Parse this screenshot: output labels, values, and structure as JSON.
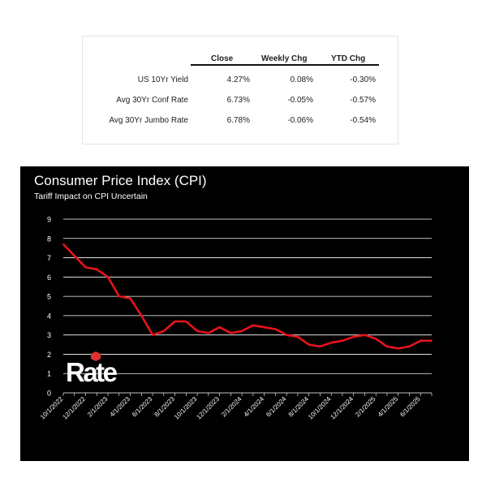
{
  "rates_table": {
    "columns": [
      "Close",
      "Weekly Chg",
      "YTD Chg"
    ],
    "rows": [
      {
        "label": "US 10Yr Yield",
        "close": "4.27%",
        "weekly": "0.08%",
        "ytd": "-0.30%"
      },
      {
        "label": "Avg 30Yr Conf Rate",
        "close": "6.73%",
        "weekly": "-0.05%",
        "ytd": "-0.57%"
      },
      {
        "label": "Avg 30Yr Jumbo Rate",
        "close": "6.78%",
        "weekly": "-0.06%",
        "ytd": "-0.54%"
      }
    ]
  },
  "logo": {
    "text": "Rate",
    "accent": "#e0312f"
  },
  "colors": {
    "background": "#000000",
    "line": "#e8131b",
    "grid": "#ffffff",
    "text": "#ffffff"
  },
  "chart_data": {
    "type": "line",
    "title": "Consumer Price Index (CPI)",
    "subtitle": "Tariff Impact on CPI Uncertain",
    "xlabel": "",
    "ylabel": "",
    "ylim": [
      0,
      9
    ],
    "yticks": [
      "0",
      "1",
      "2",
      "3",
      "4",
      "5",
      "6",
      "7",
      "8",
      "9"
    ],
    "grid": true,
    "legend": "none",
    "x": [
      "10/1/2022",
      "11/1/2022",
      "12/1/2022",
      "1/1/2023",
      "2/1/2023",
      "3/1/2023",
      "4/1/2023",
      "5/1/2023",
      "6/1/2023",
      "7/1/2023",
      "8/1/2023",
      "9/1/2023",
      "10/1/2023",
      "11/1/2023",
      "12/1/2023",
      "1/1/2024",
      "2/1/2024",
      "3/1/2024",
      "4/1/2024",
      "5/1/2024",
      "6/1/2024",
      "7/1/2024",
      "8/1/2024",
      "9/1/2024",
      "10/1/2024",
      "11/1/2024",
      "12/1/2024",
      "1/1/2025",
      "2/1/2025",
      "3/1/2025",
      "4/1/2025",
      "5/1/2025",
      "6/1/2025",
      "7/1/2025"
    ],
    "xtick_labels": [
      "10/1/2022",
      "12/1/2022",
      "2/1/2023",
      "4/1/2023",
      "6/1/2023",
      "8/1/2023",
      "10/1/2023",
      "12/1/2023",
      "2/1/2024",
      "4/1/2024",
      "6/1/2024",
      "8/1/2024",
      "10/1/2024",
      "12/1/2024",
      "2/1/2025",
      "4/1/2025",
      "6/1/2025"
    ],
    "series": [
      {
        "values": [
          7.7,
          7.1,
          6.5,
          6.4,
          6.0,
          5.0,
          4.9,
          4.0,
          3.0,
          3.2,
          3.7,
          3.7,
          3.2,
          3.1,
          3.4,
          3.1,
          3.2,
          3.5,
          3.4,
          3.3,
          3.0,
          2.9,
          2.5,
          2.4,
          2.6,
          2.7,
          2.9,
          3.0,
          2.8,
          2.4,
          2.3,
          2.4,
          2.7,
          2.7
        ]
      }
    ]
  }
}
